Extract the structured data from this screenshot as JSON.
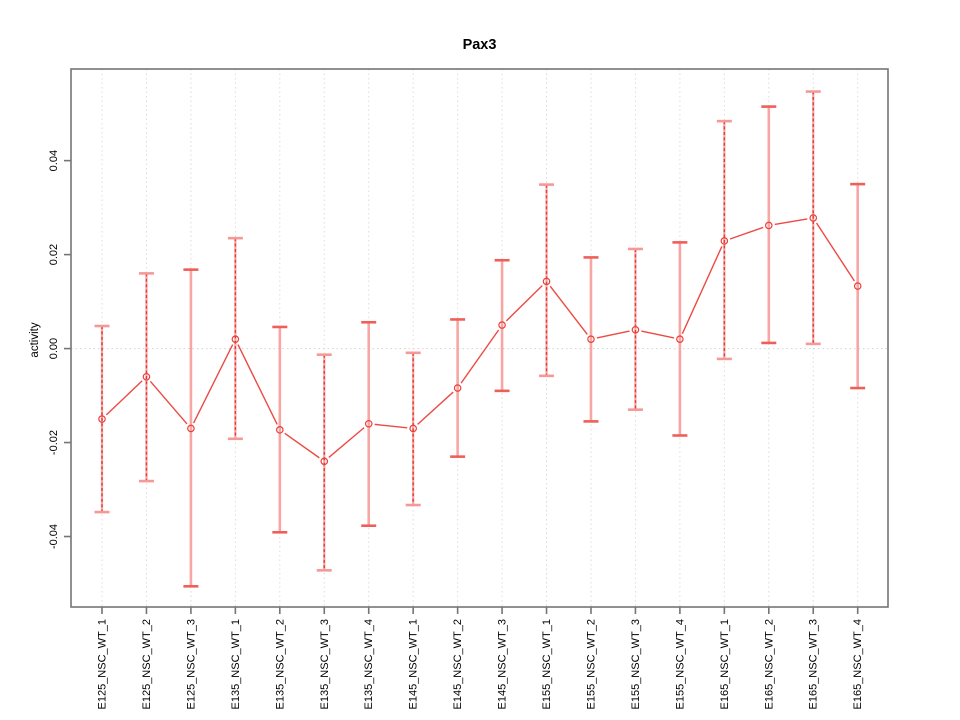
{
  "chart_data": {
    "type": "line",
    "title": "Pax3",
    "xlabel": "",
    "ylabel": "activity",
    "categories": [
      "E125_NSC_WT_1",
      "E125_NSC_WT_2",
      "E125_NSC_WT_3",
      "E135_NSC_WT_1",
      "E135_NSC_WT_2",
      "E135_NSC_WT_3",
      "E135_NSC_WT_4",
      "E145_NSC_WT_1",
      "E145_NSC_WT_2",
      "E145_NSC_WT_3",
      "E155_NSC_WT_1",
      "E155_NSC_WT_2",
      "E155_NSC_WT_3",
      "E155_NSC_WT_4",
      "E165_NSC_WT_1",
      "E165_NSC_WT_2",
      "E165_NSC_WT_3",
      "E165_NSC_WT_4"
    ],
    "series": [
      {
        "name": "activity",
        "values": [
          -0.015,
          -0.006,
          -0.017,
          0.002,
          -0.0173,
          -0.024,
          -0.016,
          -0.017,
          -0.0084,
          0.005,
          0.0143,
          0.002,
          0.004,
          0.002,
          0.0229,
          0.0262,
          0.0278,
          0.0133
        ],
        "lower": [
          -0.0348,
          -0.0282,
          -0.0506,
          -0.0192,
          -0.0391,
          -0.0472,
          -0.0377,
          -0.0333,
          -0.023,
          -0.009,
          -0.0058,
          -0.0155,
          -0.013,
          -0.0185,
          -0.0022,
          0.0012,
          0.001,
          -0.0084
        ],
        "upper": [
          0.0048,
          0.016,
          0.0168,
          0.0235,
          0.0046,
          -0.0013,
          0.0056,
          -0.0009,
          0.0062,
          0.0188,
          0.0349,
          0.0194,
          0.0212,
          0.0226,
          0.0484,
          0.0515,
          0.0547,
          0.035
        ],
        "bar_styles": [
          "dashed",
          "dashed",
          "solid",
          "dashed",
          "solid",
          "dashed",
          "solid",
          "dashed",
          "solid",
          "solid",
          "dashed",
          "solid",
          "dashed",
          "solid",
          "dashed",
          "solid",
          "dashed",
          "solid"
        ]
      }
    ],
    "ylim": [
      -0.055,
      0.0595
    ],
    "yticks": [
      -0.04,
      -0.02,
      0,
      0.02,
      0.04
    ],
    "ytick_labels": [
      "-0.04",
      "-0.02",
      "0.00",
      "0.02",
      "0.04"
    ],
    "grid": "vertical-dotted-at-each-category",
    "zero_line": true,
    "legend": "none",
    "marker": "open-circle",
    "line_type": "points-with-gaps"
  },
  "colors": {
    "series_line": "#ed4a45",
    "marker_stroke": "#e8403b",
    "bar_light": "#f8a6a4",
    "bar_dash": "#e23c38",
    "cap_dashed_style": "#f59997",
    "cap_solid_style": "#ef5f5a",
    "axis": "#757575",
    "grid_line": "#dcdcdc",
    "zero_line": "#d2d2d2",
    "title_color": "#000000",
    "tick_label_color": "#000000"
  }
}
